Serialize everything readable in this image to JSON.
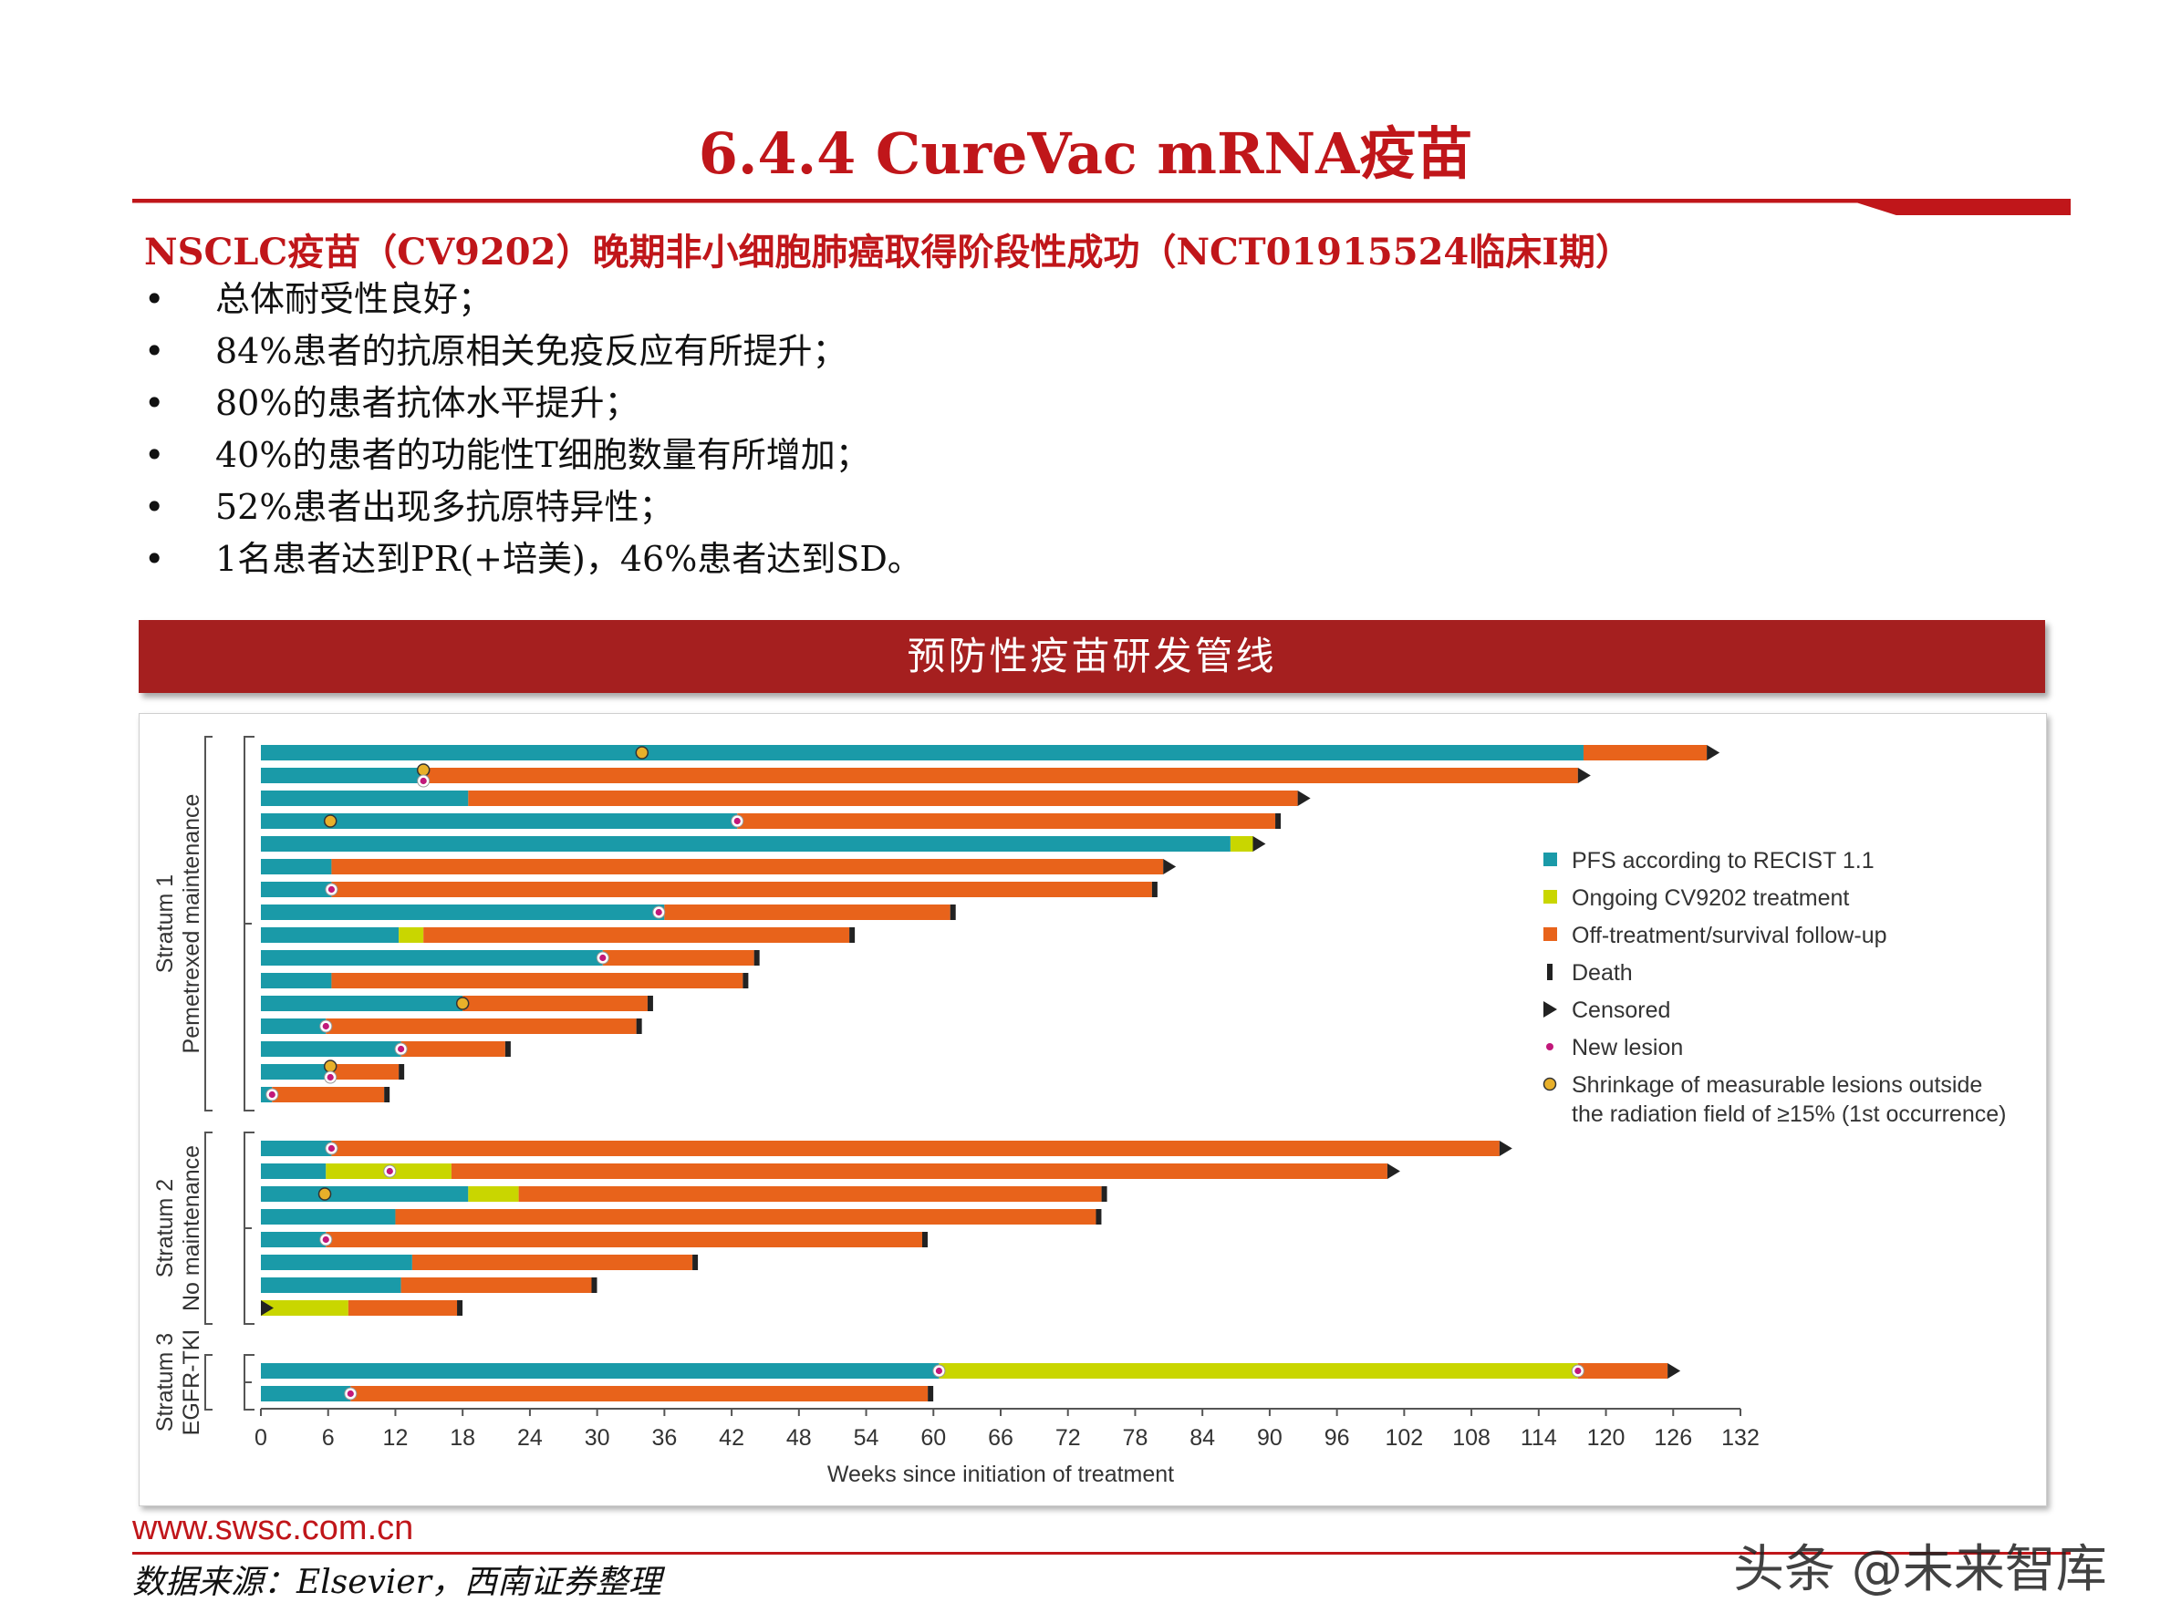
{
  "page": {
    "title": "6.4.4 CureVac mRNA疫苗",
    "subtitle": "NSCLC疫苗（CV9202）晚期非小细胞肺癌取得阶段性成功（NCT01915524临床I期）",
    "bullets": [
      "总体耐受性良好；",
      "84%患者的抗原相关免疫反应有所提升；",
      "80%的患者抗体水平提升；",
      "40%的患者的功能性T细胞数量有所增加；",
      "52%患者出现多抗原特异性；",
      "1名患者达到PR(+培美)，46%患者达到SD。"
    ],
    "bullet_symbol": "•",
    "banner": "预防性疫苗研发管线",
    "footer_url": "www.swsc.com.cn",
    "footer_source": "数据来源：Elsevier，西南证券整理",
    "watermark": "头条 @未来智库",
    "accent_color": "#c0161a"
  },
  "chart_data": {
    "type": "swimmer",
    "xlabel": "Weeks since initiation of treatment",
    "xlim": [
      0,
      132
    ],
    "xticks": [
      0,
      6,
      12,
      18,
      24,
      30,
      36,
      42,
      48,
      54,
      60,
      66,
      72,
      78,
      84,
      90,
      96,
      102,
      108,
      114,
      120,
      126,
      132
    ],
    "colors": {
      "pfs": "#1a9aa8",
      "ongoing": "#c9d600",
      "off": "#e8631b",
      "death": "#222222",
      "censored": "#222222",
      "new_lesion": "#c2187a",
      "shrinkage": "#e8b02a"
    },
    "legend": {
      "placement": "right",
      "items": [
        {
          "key": "pfs",
          "label": "PFS according to RECIST 1.1"
        },
        {
          "key": "ongoing",
          "label": "Ongoing CV9202 treatment"
        },
        {
          "key": "off",
          "label": "Off-treatment/survival follow-up"
        },
        {
          "key": "death",
          "label": "Death"
        },
        {
          "key": "censored",
          "label": "Censored"
        },
        {
          "key": "new_lesion",
          "label": "New lesion"
        },
        {
          "key": "shrinkage",
          "label": "Shrinkage of measurable lesions outside",
          "label2": "the radiation field of ≥15% (1st occurrence)"
        }
      ]
    },
    "strata": [
      {
        "label": "Stratum 1",
        "sublabel": "Pemetrexed maintenance",
        "patients": [
          {
            "segments": [
              [
                "pfs",
                0,
                118
              ],
              [
                "off",
                118,
                129
              ]
            ],
            "end": "censored",
            "new_lesion": [],
            "shrinkage": [
              34
            ]
          },
          {
            "segments": [
              [
                "pfs",
                0,
                14.5
              ],
              [
                "off",
                14.5,
                117.5
              ]
            ],
            "end": "censored",
            "new_lesion": [
              14.5
            ],
            "shrinkage": [
              14.5
            ]
          },
          {
            "segments": [
              [
                "pfs",
                0,
                18.5
              ],
              [
                "off",
                18.5,
                92.5
              ]
            ],
            "end": "censored",
            "new_lesion": [],
            "shrinkage": []
          },
          {
            "segments": [
              [
                "pfs",
                0,
                42.5
              ],
              [
                "off",
                42.5,
                90.5
              ]
            ],
            "end": "death",
            "new_lesion": [
              42.5
            ],
            "shrinkage": [
              6.2
            ]
          },
          {
            "segments": [
              [
                "pfs",
                0,
                86.5
              ],
              [
                "ongoing",
                86.5,
                88.5
              ]
            ],
            "end": "censored",
            "new_lesion": [],
            "shrinkage": []
          },
          {
            "segments": [
              [
                "pfs",
                0,
                6.3
              ],
              [
                "off",
                6.3,
                80.5
              ]
            ],
            "end": "censored",
            "new_lesion": [],
            "shrinkage": []
          },
          {
            "segments": [
              [
                "pfs",
                0,
                6.3
              ],
              [
                "off",
                6.3,
                79.5
              ]
            ],
            "end": "death",
            "new_lesion": [
              6.3
            ],
            "shrinkage": []
          },
          {
            "segments": [
              [
                "pfs",
                0,
                36
              ],
              [
                "off",
                36,
                61.5
              ]
            ],
            "end": "death",
            "new_lesion": [
              35.5
            ],
            "shrinkage": []
          },
          {
            "segments": [
              [
                "pfs",
                0,
                12.3
              ],
              [
                "ongoing",
                12.3,
                14.5
              ],
              [
                "off",
                14.5,
                52.5
              ]
            ],
            "end": "death",
            "new_lesion": [],
            "shrinkage": []
          },
          {
            "segments": [
              [
                "pfs",
                0,
                30.5
              ],
              [
                "off",
                30.5,
                44
              ]
            ],
            "end": "death",
            "new_lesion": [
              30.5
            ],
            "shrinkage": []
          },
          {
            "segments": [
              [
                "pfs",
                0,
                6.3
              ],
              [
                "off",
                6.3,
                43
              ]
            ],
            "end": "death",
            "new_lesion": [],
            "shrinkage": []
          },
          {
            "segments": [
              [
                "pfs",
                0,
                18
              ],
              [
                "off",
                18,
                34.5
              ]
            ],
            "end": "death",
            "new_lesion": [],
            "shrinkage": [
              18
            ]
          },
          {
            "segments": [
              [
                "pfs",
                0,
                5.8
              ],
              [
                "off",
                5.8,
                33.5
              ]
            ],
            "end": "death",
            "new_lesion": [
              5.8
            ],
            "shrinkage": []
          },
          {
            "segments": [
              [
                "pfs",
                0,
                12.5
              ],
              [
                "off",
                12.5,
                21.8
              ]
            ],
            "end": "death",
            "new_lesion": [
              12.5
            ],
            "shrinkage": []
          },
          {
            "segments": [
              [
                "pfs",
                0,
                6.2
              ],
              [
                "off",
                6.2,
                12.3
              ]
            ],
            "end": "death",
            "new_lesion": [
              6.2
            ],
            "shrinkage": [
              6.2
            ]
          },
          {
            "segments": [
              [
                "pfs",
                0,
                1
              ],
              [
                "off",
                1,
                11
              ]
            ],
            "end": "death",
            "new_lesion": [
              1
            ],
            "shrinkage": []
          }
        ]
      },
      {
        "label": "Stratum 2",
        "sublabel": "No maintenance",
        "patients": [
          {
            "segments": [
              [
                "pfs",
                0,
                6.3
              ],
              [
                "off",
                6.3,
                110.5
              ]
            ],
            "end": "censored",
            "new_lesion": [
              6.3
            ],
            "shrinkage": []
          },
          {
            "segments": [
              [
                "pfs",
                0,
                5.8
              ],
              [
                "ongoing",
                5.8,
                17
              ],
              [
                "off",
                17,
                100.5
              ]
            ],
            "end": "censored",
            "new_lesion": [
              11.5
            ],
            "shrinkage": []
          },
          {
            "segments": [
              [
                "pfs",
                0,
                18.5
              ],
              [
                "ongoing",
                18.5,
                23
              ],
              [
                "off",
                23,
                75
              ]
            ],
            "end": "death",
            "new_lesion": [],
            "shrinkage": [
              5.7
            ]
          },
          {
            "segments": [
              [
                "pfs",
                0,
                12
              ],
              [
                "off",
                12,
                74.5
              ]
            ],
            "end": "death",
            "new_lesion": [],
            "shrinkage": []
          },
          {
            "segments": [
              [
                "pfs",
                0,
                5.8
              ],
              [
                "off",
                5.8,
                59
              ]
            ],
            "end": "death",
            "new_lesion": [
              5.8
            ],
            "shrinkage": []
          },
          {
            "segments": [
              [
                "pfs",
                0,
                13.5
              ],
              [
                "off",
                13.5,
                38.5
              ]
            ],
            "end": "death",
            "new_lesion": [],
            "shrinkage": []
          },
          {
            "segments": [
              [
                "pfs",
                0,
                12.5
              ],
              [
                "off",
                12.5,
                29.5
              ]
            ],
            "end": "death",
            "new_lesion": [],
            "shrinkage": []
          },
          {
            "segments": [
              [
                "ongoing",
                0,
                7.8
              ],
              [
                "off",
                7.8,
                17.5
              ]
            ],
            "end": "death",
            "start_censored": true,
            "new_lesion": [],
            "shrinkage": []
          }
        ]
      },
      {
        "label": "Stratum 3",
        "sublabel": "EGFR-TKI",
        "patients": [
          {
            "segments": [
              [
                "pfs",
                0,
                60.5
              ],
              [
                "ongoing",
                60.5,
                117.5
              ],
              [
                "off",
                117.5,
                125.5
              ]
            ],
            "end": "censored",
            "new_lesion": [
              60.5,
              117.5
            ],
            "shrinkage": []
          },
          {
            "segments": [
              [
                "pfs",
                0,
                8
              ],
              [
                "off",
                8,
                59.5
              ]
            ],
            "end": "death",
            "new_lesion": [
              8
            ],
            "shrinkage": []
          }
        ]
      }
    ]
  }
}
